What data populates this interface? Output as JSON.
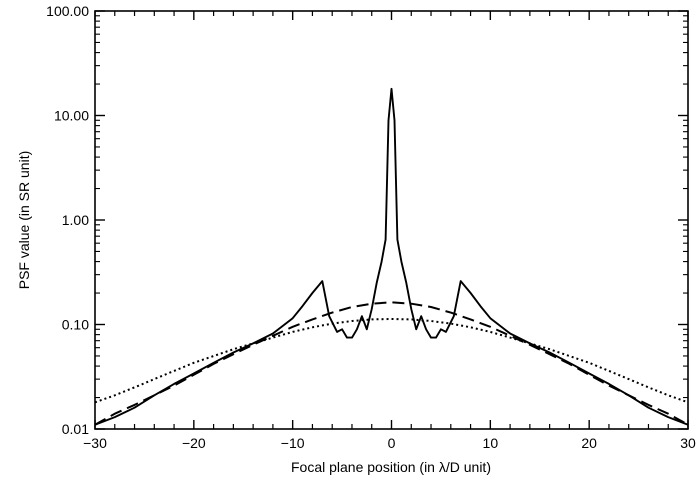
{
  "chart_data": {
    "type": "line",
    "title": "",
    "xlabel": "Focal plane position (in λ/D unit)",
    "ylabel": "PSF value (in SR unit)",
    "xlim": [
      -30,
      30
    ],
    "ylim": [
      0.01,
      100
    ],
    "yscale": "log",
    "grid": false,
    "legend": "none",
    "x_ticks": [
      -30,
      -20,
      -10,
      0,
      10,
      20,
      30
    ],
    "x_tick_labels": [
      "−30",
      "−20",
      "−10",
      "0",
      "10",
      "20",
      "30"
    ],
    "y_ticks": [
      0.01,
      0.1,
      1,
      10,
      100
    ],
    "y_tick_labels": [
      "0.01",
      "0.10",
      "1.00",
      "10.00",
      "100.00"
    ],
    "series": [
      {
        "line_style": "solid",
        "color": "#000000",
        "x": [
          -30,
          -28,
          -26,
          -24,
          -22,
          -20,
          -18,
          -16,
          -14,
          -12,
          -10,
          -9,
          -8,
          -7,
          -6.3,
          -5.5,
          -5,
          -4.5,
          -4,
          -3.5,
          -3,
          -2.5,
          -2,
          -1.5,
          -1,
          -0.6,
          -0.3,
          0,
          0.3,
          0.6,
          1,
          1.5,
          2,
          2.5,
          3,
          3.5,
          4,
          4.5,
          5,
          5.5,
          6.3,
          7,
          8,
          9,
          10,
          12,
          14,
          16,
          18,
          20,
          22,
          24,
          26,
          28,
          30
        ],
        "y": [
          0.011,
          0.013,
          0.016,
          0.021,
          0.027,
          0.034,
          0.043,
          0.054,
          0.066,
          0.082,
          0.115,
          0.15,
          0.2,
          0.26,
          0.12,
          0.085,
          0.09,
          0.075,
          0.075,
          0.09,
          0.12,
          0.09,
          0.14,
          0.25,
          0.4,
          0.65,
          9,
          18,
          9,
          0.65,
          0.4,
          0.25,
          0.14,
          0.09,
          0.12,
          0.09,
          0.075,
          0.075,
          0.09,
          0.085,
          0.12,
          0.26,
          0.2,
          0.15,
          0.115,
          0.082,
          0.066,
          0.054,
          0.043,
          0.034,
          0.027,
          0.021,
          0.016,
          0.013,
          0.011
        ]
      },
      {
        "line_style": "dashed",
        "color": "#000000",
        "x": [
          -30,
          -28,
          -26,
          -24,
          -22,
          -20,
          -18,
          -16,
          -14,
          -12,
          -10,
          -8,
          -6,
          -4,
          -2,
          0,
          2,
          4,
          6,
          8,
          10,
          12,
          14,
          16,
          18,
          20,
          22,
          24,
          26,
          28,
          30
        ],
        "y": [
          0.011,
          0.014,
          0.017,
          0.021,
          0.026,
          0.033,
          0.042,
          0.052,
          0.064,
          0.078,
          0.095,
          0.112,
          0.13,
          0.147,
          0.158,
          0.163,
          0.158,
          0.147,
          0.13,
          0.112,
          0.095,
          0.078,
          0.064,
          0.052,
          0.042,
          0.033,
          0.026,
          0.021,
          0.017,
          0.014,
          0.011
        ]
      },
      {
        "line_style": "dotted",
        "color": "#000000",
        "x": [
          -30,
          -28,
          -26,
          -24,
          -22,
          -20,
          -18,
          -16,
          -14,
          -12,
          -10,
          -8,
          -6,
          -4,
          -2,
          0,
          2,
          4,
          6,
          8,
          10,
          12,
          14,
          16,
          18,
          20,
          22,
          24,
          26,
          28,
          30
        ],
        "y": [
          0.018,
          0.021,
          0.025,
          0.03,
          0.036,
          0.043,
          0.05,
          0.058,
          0.066,
          0.075,
          0.085,
          0.094,
          0.102,
          0.108,
          0.112,
          0.113,
          0.112,
          0.108,
          0.102,
          0.094,
          0.085,
          0.075,
          0.066,
          0.058,
          0.05,
          0.043,
          0.036,
          0.03,
          0.025,
          0.021,
          0.018
        ]
      }
    ]
  }
}
